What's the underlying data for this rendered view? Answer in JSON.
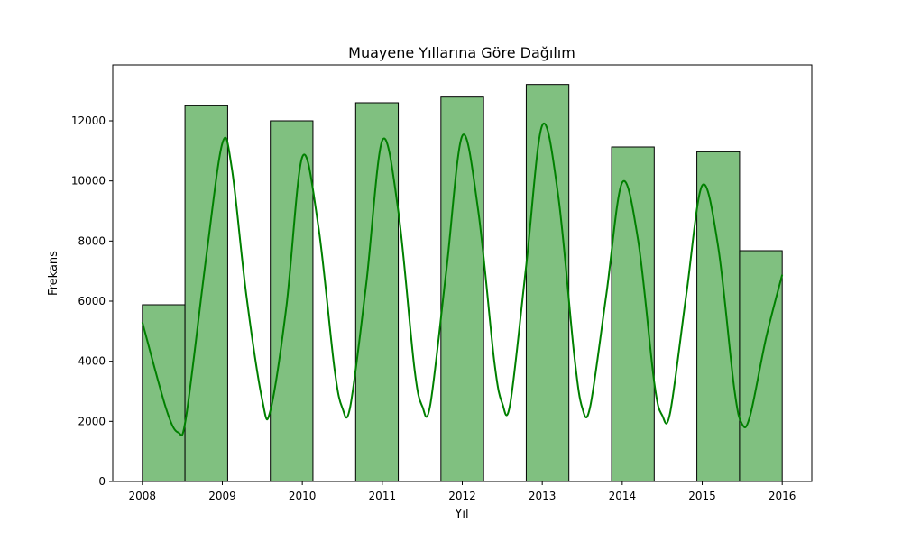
{
  "chart_data": {
    "type": "bar",
    "title": "Muayene Yıllarına Göre Dağılım",
    "xlabel": "Yıl",
    "ylabel": "Frekans",
    "xlim": [
      2007.63,
      2016.37
    ],
    "ylim": [
      0,
      13860
    ],
    "x_ticks": [
      2008,
      2009,
      2010,
      2011,
      2012,
      2013,
      2014,
      2015,
      2016
    ],
    "y_ticks": [
      0,
      2000,
      4000,
      6000,
      8000,
      10000,
      12000
    ],
    "bins": [
      {
        "start": 2008.0,
        "end": 2008.533,
        "value": 5880
      },
      {
        "start": 2008.533,
        "end": 2009.067,
        "value": 12500
      },
      {
        "start": 2009.6,
        "end": 2010.133,
        "value": 12000
      },
      {
        "start": 2010.667,
        "end": 2011.2,
        "value": 12600
      },
      {
        "start": 2011.733,
        "end": 2012.267,
        "value": 12790
      },
      {
        "start": 2012.8,
        "end": 2013.333,
        "value": 13210
      },
      {
        "start": 2013.867,
        "end": 2014.4,
        "value": 11130
      },
      {
        "start": 2014.933,
        "end": 2015.467,
        "value": 10970
      },
      {
        "start": 2015.467,
        "end": 2016.0,
        "value": 7680
      }
    ],
    "kde": {
      "x": [
        2008.0,
        2008.3,
        2008.45,
        2008.55,
        2008.8,
        2009.0,
        2009.12,
        2009.3,
        2009.5,
        2009.6,
        2009.8,
        2010.0,
        2010.2,
        2010.4,
        2010.5,
        2010.6,
        2010.8,
        2011.0,
        2011.2,
        2011.4,
        2011.5,
        2011.6,
        2011.8,
        2012.0,
        2012.2,
        2012.4,
        2012.5,
        2012.6,
        2012.8,
        2013.0,
        2013.2,
        2013.4,
        2013.5,
        2013.6,
        2013.8,
        2014.0,
        2014.2,
        2014.4,
        2014.5,
        2014.6,
        2014.8,
        2015.0,
        2015.2,
        2015.4,
        2015.5,
        2015.6,
        2015.8,
        2016.0
      ],
      "y": [
        5300,
        2400,
        1630,
        2200,
        7500,
        11250,
        10400,
        6200,
        2700,
        2350,
        5800,
        10800,
        8500,
        3800,
        2450,
        2500,
        6600,
        11350,
        9000,
        3800,
        2500,
        2550,
        7000,
        11500,
        9000,
        4000,
        2600,
        2600,
        7200,
        11850,
        9500,
        4200,
        2450,
        2500,
        6200,
        9950,
        8000,
        3300,
        2200,
        2300,
        6200,
        9850,
        7800,
        3100,
        1900,
        2200,
        4800,
        6880
      ]
    },
    "colors": {
      "bar_fill": "#80c080",
      "bar_edge": "#000000",
      "kde_line": "#008000"
    },
    "grid": false,
    "legend": "none"
  }
}
